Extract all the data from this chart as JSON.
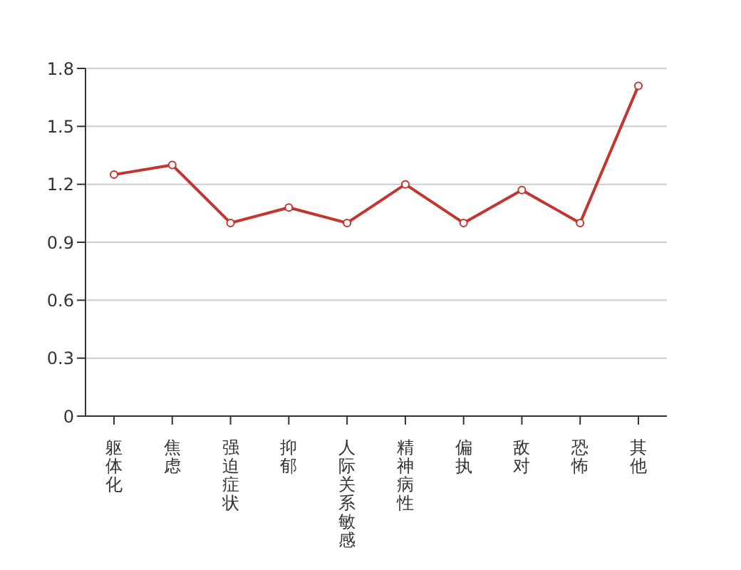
{
  "chart_data": {
    "type": "line",
    "categories": [
      "躯体化",
      "焦虑",
      "强迫症状",
      "抑郁",
      "人际关系敏感",
      "精神病性",
      "偏执",
      "敌对",
      "恐怖",
      "其他"
    ],
    "series": [
      {
        "color": "#c23531",
        "values": [
          1.25,
          1.3,
          1.0,
          1.08,
          1.0,
          1.2,
          1.0,
          1.17,
          1.0,
          1.71
        ]
      }
    ],
    "ylim": [
      0,
      1.8
    ],
    "yticks": [
      0,
      0.3,
      0.6,
      0.9,
      1.2,
      1.5,
      1.8
    ],
    "grid": "y",
    "marker": "circle",
    "line_style": "solid"
  }
}
